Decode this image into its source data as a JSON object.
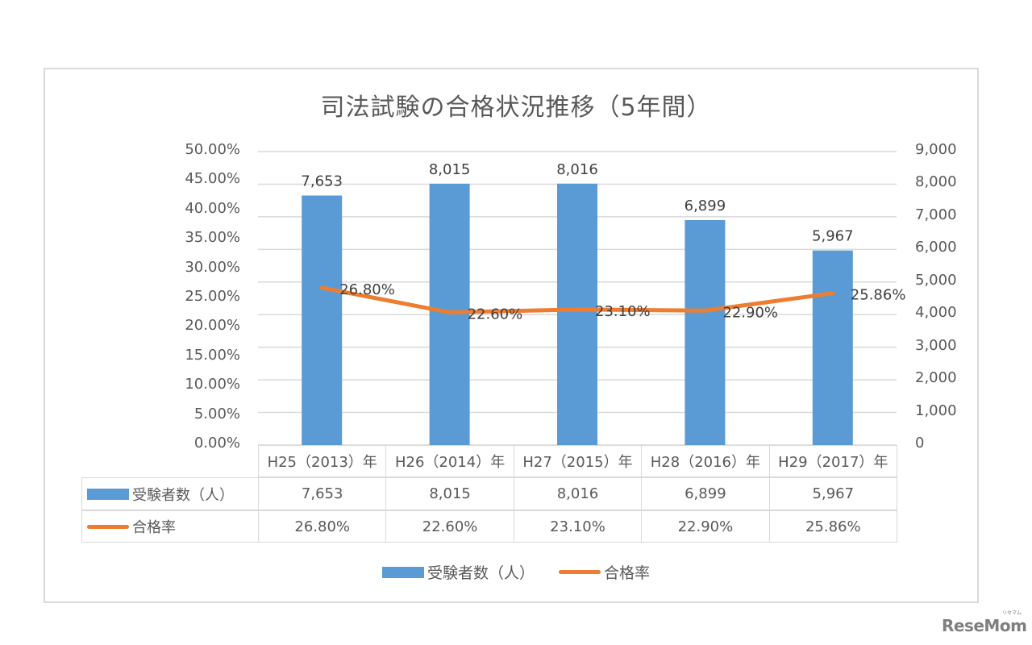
{
  "chart_data": {
    "type": "bar+line",
    "title": "司法試験の合格状況推移（5年間）",
    "categories": [
      "H25（2013）年",
      "H26（2014）年",
      "H27（2015）年",
      "H28（2016）年",
      "H29（2017）年"
    ],
    "series": [
      {
        "name": "受験者数（人）",
        "type": "bar",
        "axis": "right",
        "color": "#5B9BD5",
        "values": [
          7653,
          8015,
          8016,
          6899,
          5967
        ],
        "labels": [
          "7,653",
          "8,015",
          "8,016",
          "6,899",
          "5,967"
        ]
      },
      {
        "name": "合格率",
        "type": "line",
        "axis": "left",
        "color": "#ED7D31",
        "values": [
          26.8,
          22.6,
          23.1,
          22.9,
          25.86
        ],
        "labels": [
          "26.80%",
          "22.60%",
          "23.10%",
          "22.90%",
          "25.86%"
        ]
      }
    ],
    "left_axis": {
      "min": 0,
      "max": 50,
      "step": 5,
      "ticks": [
        "50.00%",
        "45.00%",
        "40.00%",
        "35.00%",
        "30.00%",
        "25.00%",
        "20.00%",
        "15.00%",
        "10.00%",
        "5.00%",
        "0.00%"
      ]
    },
    "right_axis": {
      "min": 0,
      "max": 9000,
      "step": 1000,
      "ticks": [
        "9,000",
        "8,000",
        "7,000",
        "6,000",
        "5,000",
        "4,000",
        "3,000",
        "2,000",
        "1,000",
        "0"
      ]
    },
    "grid": true,
    "legend_position": "bottom",
    "data_table": true
  },
  "table": {
    "rows": [
      {
        "label": "受験者数（人）",
        "swatch": "bar",
        "values": [
          "7,653",
          "8,015",
          "8,016",
          "6,899",
          "5,967"
        ]
      },
      {
        "label": "合格率",
        "swatch": "line",
        "values": [
          "26.80%",
          "22.60%",
          "23.10%",
          "22.90%",
          "25.86%"
        ]
      }
    ]
  },
  "legend": {
    "bar_label": "受験者数（人）",
    "line_label": "合格率"
  },
  "watermark": {
    "text": "ReseMom",
    "kana": "リセマム"
  }
}
